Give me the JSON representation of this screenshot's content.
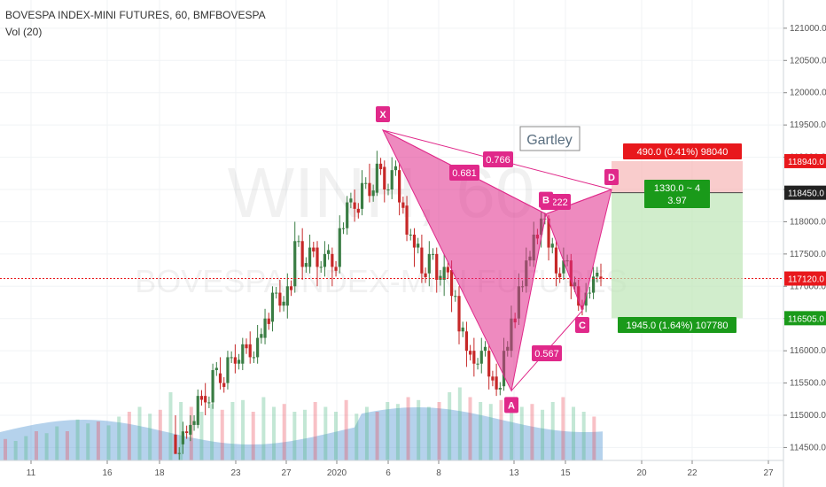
{
  "header": {
    "title": "BOVESPA INDEX-MINI FUTURES, 60, BMFBOVESPA",
    "volume_label": "Vol (20)"
  },
  "watermark": {
    "symbol": "WINH, 60",
    "name": "BOVESPA INDEX-MINI FUTURES"
  },
  "chart_data": {
    "type": "candlestick",
    "y_ticks": [
      "121000.0",
      "120500.0",
      "120000.0",
      "119500.0",
      "119000.0",
      "118500.0",
      "118000.0",
      "117500.0",
      "117000.0",
      "116500.0",
      "116000.0",
      "115500.0",
      "115000.0",
      "114500.0"
    ],
    "x_ticks": [
      "11",
      "16",
      "18",
      "23",
      "27",
      "2020",
      "6",
      "8",
      "13",
      "15",
      "20",
      "22",
      "27"
    ],
    "ylim": [
      114300,
      121300
    ],
    "price_tags": [
      {
        "value": "118940.0",
        "color": "#e8181c",
        "text_color": "#ffffff"
      },
      {
        "value": "118450.0",
        "color": "#222222",
        "text_color": "#ffffff"
      },
      {
        "value": "117120.0",
        "color": "#e8181c",
        "text_color": "#ffffff"
      },
      {
        "value": "116505.0",
        "color": "#1a9a1a",
        "text_color": "#ffffff"
      }
    ],
    "pattern": {
      "name": "Gartley",
      "points": [
        {
          "label": "X",
          "price": 119420
        },
        {
          "label": "A",
          "price": 115380
        },
        {
          "label": "B",
          "price": 118120
        },
        {
          "label": "C",
          "price": 116620
        },
        {
          "label": "D",
          "price": 118500
        }
      ],
      "ratios": [
        {
          "label": "0.766"
        },
        {
          "label": "0.681"
        },
        {
          "label": "1.222"
        },
        {
          "label": "0.567"
        }
      ],
      "color": "#e0298a"
    },
    "position": {
      "stop_label": "490.0 (0.41%) 98040",
      "entry_label_1": "1330.0 ~ 4",
      "entry_label_2": "3.97",
      "target_label": "1945.0 (1.64%) 107780",
      "stop_price": 118940,
      "entry_price": 118450,
      "target_price": 116505
    },
    "current_price": 117120,
    "candle_seed": [
      [
        114700,
        114400,
        115000,
        114500
      ],
      [
        114550,
        114750,
        114900,
        114400
      ],
      [
        114700,
        114850,
        115000,
        114600
      ],
      [
        114850,
        115300,
        115400,
        114800
      ],
      [
        115300,
        115200,
        115500,
        115000
      ],
      [
        115200,
        115700,
        115800,
        115100
      ],
      [
        115650,
        115500,
        115900,
        115400
      ],
      [
        115500,
        115900,
        116000,
        115400
      ],
      [
        115900,
        115800,
        116100,
        115650
      ],
      [
        115800,
        116100,
        116200,
        115700
      ],
      [
        116100,
        115900,
        116300,
        115800
      ],
      [
        115900,
        116200,
        116400,
        115800
      ],
      [
        116200,
        116500,
        116650,
        116100
      ],
      [
        116450,
        116900,
        117000,
        116300
      ],
      [
        116900,
        116700,
        117100,
        116600
      ],
      [
        116700,
        117000,
        117200,
        116500
      ],
      [
        117000,
        117700,
        118000,
        116900
      ],
      [
        117700,
        117300,
        117900,
        117100
      ],
      [
        117300,
        117600,
        117800,
        117200
      ],
      [
        117600,
        117300,
        117700,
        117000
      ],
      [
        117300,
        117500,
        117700,
        117150
      ],
      [
        117500,
        117300,
        117600,
        117000
      ],
      [
        117300,
        117900,
        118100,
        117200
      ],
      [
        117900,
        118300,
        118400,
        117800
      ],
      [
        118300,
        118200,
        118500,
        118000
      ],
      [
        118200,
        118600,
        118800,
        118100
      ],
      [
        118600,
        118400,
        118900,
        118300
      ],
      [
        118450,
        118900,
        119100,
        118400
      ],
      [
        118850,
        118500,
        118950,
        118300
      ],
      [
        118500,
        118800,
        119000,
        118350
      ],
      [
        118800,
        118300,
        118900,
        118100
      ],
      [
        118250,
        117800,
        118400,
        117700
      ],
      [
        117800,
        117600,
        117900,
        117300
      ],
      [
        117600,
        117200,
        117800,
        117050
      ],
      [
        117200,
        117500,
        117700,
        117000
      ],
      [
        117500,
        117100,
        117600,
        116900
      ],
      [
        117100,
        117300,
        117500,
        116850
      ],
      [
        117250,
        116850,
        117400,
        116600
      ],
      [
        116850,
        116300,
        117000,
        116100
      ],
      [
        116300,
        116000,
        116450,
        115750
      ],
      [
        116000,
        115800,
        116200,
        115600
      ],
      [
        115800,
        116000,
        116200,
        115650
      ],
      [
        116000,
        115600,
        116100,
        115400
      ],
      [
        115600,
        115400,
        115800,
        115300
      ],
      [
        115450,
        116000,
        116200,
        115380
      ],
      [
        116000,
        116500,
        116700,
        115900
      ],
      [
        116500,
        117000,
        117200,
        116400
      ],
      [
        117000,
        117400,
        117600,
        116900
      ],
      [
        117400,
        117800,
        118000,
        117300
      ],
      [
        117800,
        118050,
        118150,
        117600
      ],
      [
        118050,
        117600,
        118100,
        117400
      ],
      [
        117600,
        117200,
        117700,
        117000
      ],
      [
        117200,
        117400,
        117600,
        117100
      ],
      [
        117400,
        117000,
        117500,
        116800
      ],
      [
        117000,
        116700,
        117100,
        116620
      ],
      [
        116700,
        116900,
        117050,
        116600
      ],
      [
        116900,
        117150,
        117300,
        116800
      ],
      [
        117150,
        117120,
        117350,
        117000
      ]
    ],
    "volume_seed": [
      0.22,
      0.2,
      0.25,
      0.3,
      0.28,
      0.35,
      0.3,
      0.42,
      0.38,
      0.4,
      0.36,
      0.45,
      0.5,
      0.55,
      0.48,
      0.52,
      0.7,
      0.6,
      0.55,
      0.5,
      0.58,
      0.52,
      0.6,
      0.62,
      0.5,
      0.65,
      0.55,
      0.58,
      0.5,
      0.52,
      0.6,
      0.55,
      0.5,
      0.62,
      0.48,
      0.55,
      0.5,
      0.6,
      0.58,
      0.65,
      0.62,
      0.55,
      0.6,
      0.7,
      0.75,
      0.65,
      0.6,
      0.58,
      0.62,
      0.6,
      0.55,
      0.58,
      0.52,
      0.6,
      0.65,
      0.55,
      0.5,
      0.45
    ]
  }
}
